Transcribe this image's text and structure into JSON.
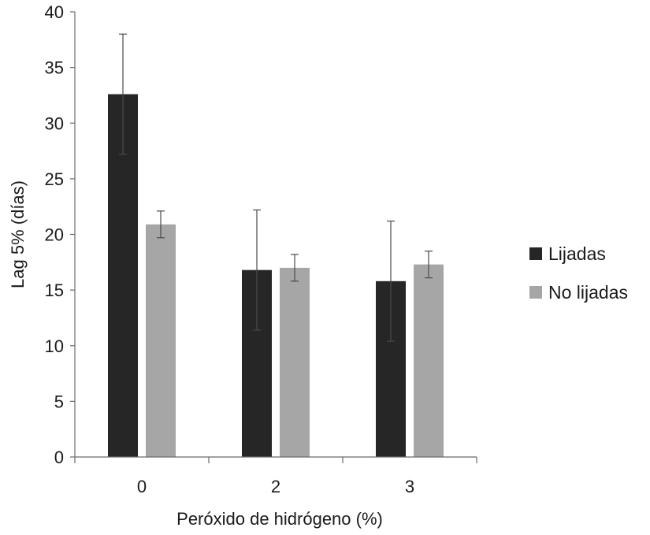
{
  "chart_data": {
    "type": "bar",
    "title": "",
    "xlabel": "Peróxido de hidrógeno (%)",
    "ylabel": "Lag 5% (días)",
    "categories": [
      "0",
      "2",
      "3"
    ],
    "ylim": [
      0,
      40
    ],
    "yticks": [
      0,
      5,
      10,
      15,
      20,
      25,
      30,
      35,
      40
    ],
    "grid": false,
    "legend_position": "right",
    "series": [
      {
        "name": "Lijadas",
        "color": "#262626",
        "values": [
          32.6,
          16.8,
          15.8
        ],
        "error_low": [
          27.2,
          11.4,
          10.4
        ],
        "error_high": [
          38.0,
          22.2,
          21.2
        ]
      },
      {
        "name": "No lijadas",
        "color": "#a6a6a6",
        "values": [
          20.9,
          17.0,
          17.3
        ],
        "error_low": [
          19.7,
          15.8,
          16.1
        ],
        "error_high": [
          22.1,
          18.2,
          18.5
        ]
      }
    ]
  }
}
